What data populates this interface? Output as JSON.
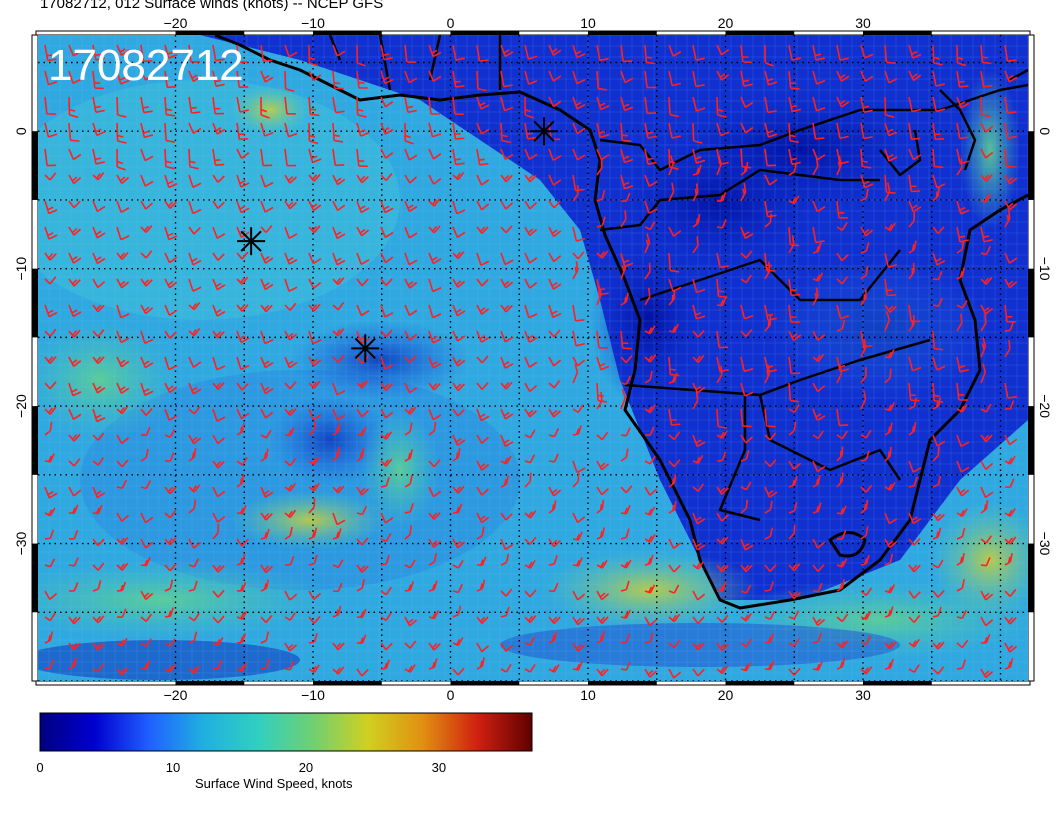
{
  "title": "17082712, 012 Surface winds (knots) -- NCEP GFS",
  "stamp": "17082712",
  "map": {
    "lon_range": [
      -30,
      42
    ],
    "lat_range": [
      -40,
      7
    ],
    "lon_ticks": [
      "-20",
      "-10",
      "0",
      "10",
      "20",
      "30"
    ],
    "lat_ticks": [
      "0",
      "-10",
      "-20",
      "-30"
    ],
    "grid": "dotted",
    "barb_color": "#ff2020",
    "coastline_color": "#000000",
    "markers": [
      {
        "name": "marker-star-1",
        "lon": 6.8,
        "lat": 0.0
      },
      {
        "name": "marker-star-2",
        "lon": -14.5,
        "lat": -8.0
      },
      {
        "name": "marker-star-3",
        "lon": -6.2,
        "lat": -15.8
      }
    ]
  },
  "colorbar": {
    "label": "Surface Wind Speed, knots",
    "tick_labels": [
      "0",
      "10",
      "20",
      "30"
    ],
    "range": [
      0,
      37
    ],
    "colors": [
      "#000080",
      "#0000d0",
      "#2060ff",
      "#20b0e0",
      "#30d0c0",
      "#70d070",
      "#d0d020",
      "#e09010",
      "#d02010",
      "#600000"
    ]
  }
}
